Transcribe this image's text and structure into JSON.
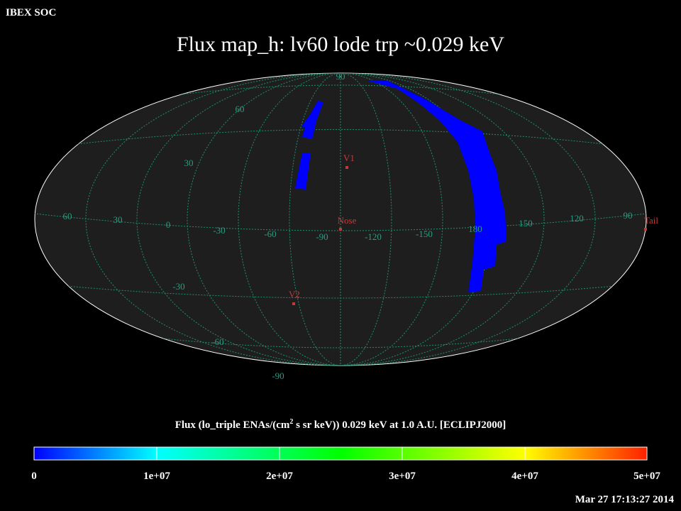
{
  "header": {
    "org": "IBEX SOC",
    "title": "Flux   map_h: lv60 lode trp ~0.029 keV"
  },
  "map": {
    "grid_labels": [
      "90",
      "60",
      "30",
      "60",
      "30",
      "0",
      "-30",
      "-60",
      "-90",
      "-120",
      "-150",
      "180",
      "150",
      "120",
      "90",
      "-30",
      "-60",
      "-90"
    ],
    "markers": [
      "V1",
      "Nose",
      "V2",
      "Tail"
    ]
  },
  "colorbar": {
    "label": {
      "before": "Flux (lo_triple ENAs/(cm",
      "sup": "2",
      "after": " s sr keV))  0.029 keV at 1.0 A.U. [ECLIPJ2000]"
    },
    "ticks": [
      "0",
      "1e+07",
      "2e+07",
      "3e+07",
      "4e+07",
      "5e+07"
    ]
  },
  "footer": {
    "timestamp": "Mar 27 17:13:27 2014"
  }
}
